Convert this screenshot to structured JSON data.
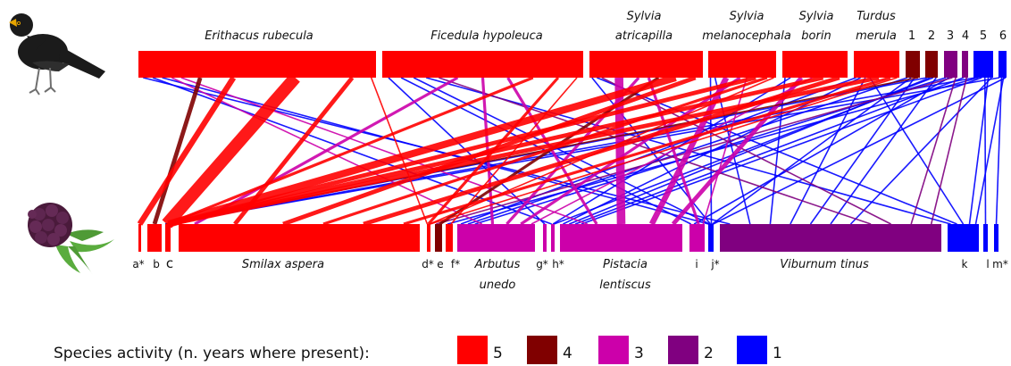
{
  "colors": {
    "5": "#ff0000",
    "4": "#800000",
    "3": "#cc00aa",
    "2": "#800080",
    "1": "#0000ff"
  },
  "birds": [
    {
      "id": "erithacus",
      "lines": [
        "Erithacus rubecula"
      ],
      "activity": 5
    },
    {
      "id": "ficedula",
      "lines": [
        "Ficedula hypoleuca"
      ],
      "activity": 5
    },
    {
      "id": "sylvia-atricapilla",
      "lines": [
        "Sylvia",
        "atricapilla"
      ],
      "activity": 5
    },
    {
      "id": "sylvia-melanocephala",
      "lines": [
        "Sylvia",
        "melanocephala"
      ],
      "activity": 5
    },
    {
      "id": "sylvia-borin",
      "lines": [
        "Sylvia",
        "borin"
      ],
      "activity": 5
    },
    {
      "id": "turdus",
      "lines": [
        "Turdus",
        "merula"
      ],
      "activity": 5
    },
    {
      "id": "1",
      "lines": [
        "1"
      ],
      "activity": 4
    },
    {
      "id": "2",
      "lines": [
        "2"
      ],
      "activity": 4
    },
    {
      "id": "3",
      "lines": [
        "3"
      ],
      "activity": 2
    },
    {
      "id": "4",
      "lines": [
        "4"
      ],
      "activity": 2
    },
    {
      "id": "5",
      "lines": [
        "5"
      ],
      "activity": 1
    },
    {
      "id": "6",
      "lines": [
        "6"
      ],
      "activity": 1
    }
  ],
  "plants": [
    {
      "id": "a",
      "code": "a*",
      "activity": 5
    },
    {
      "id": "b",
      "code": "b",
      "activity": 5
    },
    {
      "id": "c",
      "code": "c",
      "activity": 5
    },
    {
      "id": "smilax",
      "name": [
        "Smilax aspera"
      ],
      "activity": 5
    },
    {
      "id": "d",
      "code": "d*",
      "activity": 5
    },
    {
      "id": "e",
      "code": "e",
      "activity": 4
    },
    {
      "id": "f",
      "code": "f*",
      "activity": 5
    },
    {
      "id": "arbutus",
      "name": [
        "Arbutus",
        "unedo"
      ],
      "activity": 3
    },
    {
      "id": "g",
      "code": "g*",
      "activity": 3
    },
    {
      "id": "h",
      "code": "h*",
      "activity": 3
    },
    {
      "id": "pistacia",
      "name": [
        "Pistacia",
        "lentiscus"
      ],
      "activity": 3
    },
    {
      "id": "i",
      "code": "i",
      "activity": 3
    },
    {
      "id": "j",
      "code": "j*",
      "activity": 1
    },
    {
      "id": "viburnum",
      "name": [
        "Viburnum tinus"
      ],
      "activity": 2
    },
    {
      "id": "k",
      "code": "k",
      "activity": 1
    },
    {
      "id": "l",
      "code": "l",
      "activity": 1
    },
    {
      "id": "m",
      "code": "m*",
      "activity": 1
    }
  ],
  "links": [
    [
      "erithacus",
      "a",
      5,
      4
    ],
    [
      "erithacus",
      "b",
      4,
      3
    ],
    [
      "erithacus",
      "c",
      5,
      9
    ],
    [
      "erithacus",
      "smilax",
      5,
      3
    ],
    [
      "erithacus",
      "d",
      5,
      1
    ],
    [
      "erithacus",
      "arbutus",
      3,
      1
    ],
    [
      "erithacus",
      "pistacia",
      3,
      1
    ],
    [
      "erithacus",
      "viburnum",
      1,
      1
    ],
    [
      "erithacus",
      "h",
      1,
      1
    ],
    [
      "erithacus",
      "j",
      1,
      1
    ],
    [
      "ficedula",
      "c",
      5,
      2
    ],
    [
      "ficedula",
      "smilax",
      3,
      2
    ],
    [
      "ficedula",
      "d",
      5,
      2
    ],
    [
      "ficedula",
      "f",
      5,
      1
    ],
    [
      "ficedula",
      "arbutus",
      3,
      2
    ],
    [
      "ficedula",
      "pistacia",
      3,
      2
    ],
    [
      "ficedula",
      "g",
      1,
      1
    ],
    [
      "ficedula",
      "viburnum",
      2,
      1
    ],
    [
      "ficedula",
      "i",
      1,
      1
    ],
    [
      "ficedula",
      "j",
      1,
      1
    ],
    [
      "ficedula",
      "k",
      1,
      1
    ],
    [
      "sylvia-atricapilla",
      "c",
      5,
      5
    ],
    [
      "sylvia-atricapilla",
      "smilax",
      5,
      3
    ],
    [
      "sylvia-atricapilla",
      "e",
      4,
      2
    ],
    [
      "sylvia-atricapilla",
      "pistacia",
      3,
      6
    ],
    [
      "sylvia-atricapilla",
      "arbutus",
      3,
      2
    ],
    [
      "sylvia-atricapilla",
      "i",
      3,
      2
    ],
    [
      "sylvia-atricapilla",
      "viburnum",
      2,
      1
    ],
    [
      "sylvia-atricapilla",
      "j",
      1,
      1
    ],
    [
      "sylvia-atricapilla",
      "k",
      1,
      1
    ],
    [
      "sylvia-melanocephala",
      "c",
      5,
      3
    ],
    [
      "sylvia-melanocephala",
      "smilax",
      5,
      2
    ],
    [
      "sylvia-melanocephala",
      "pistacia",
      3,
      4
    ],
    [
      "sylvia-melanocephala",
      "arbutus",
      3,
      2
    ],
    [
      "sylvia-melanocephala",
      "i",
      3,
      1
    ],
    [
      "sylvia-melanocephala",
      "d",
      5,
      1
    ],
    [
      "sylvia-melanocephala",
      "j",
      1,
      1
    ],
    [
      "sylvia-melanocephala",
      "viburnum",
      1,
      1
    ],
    [
      "sylvia-borin",
      "c",
      5,
      3
    ],
    [
      "sylvia-borin",
      "smilax",
      5,
      3
    ],
    [
      "sylvia-borin",
      "pistacia",
      3,
      3
    ],
    [
      "sylvia-borin",
      "arbutus",
      3,
      1
    ],
    [
      "sylvia-borin",
      "viburnum",
      1,
      1
    ],
    [
      "sylvia-borin",
      "h",
      1,
      1
    ],
    [
      "turdus",
      "c",
      5,
      3
    ],
    [
      "turdus",
      "smilax",
      5,
      2
    ],
    [
      "turdus",
      "d",
      5,
      1
    ],
    [
      "turdus",
      "arbutus",
      1,
      1
    ],
    [
      "turdus",
      "pistacia",
      1,
      1
    ],
    [
      "turdus",
      "viburnum",
      1,
      1
    ],
    [
      "turdus",
      "k",
      1,
      1
    ],
    [
      "1",
      "c",
      4,
      1
    ],
    [
      "1",
      "arbutus",
      1,
      1
    ],
    [
      "1",
      "j",
      1,
      1
    ],
    [
      "1",
      "viburnum",
      1,
      1
    ],
    [
      "2",
      "c",
      1,
      1
    ],
    [
      "2",
      "pistacia",
      1,
      1
    ],
    [
      "2",
      "h",
      1,
      1
    ],
    [
      "2",
      "viburnum",
      1,
      1
    ],
    [
      "3",
      "arbutus",
      1,
      1
    ],
    [
      "3",
      "e",
      2,
      1
    ],
    [
      "3",
      "viburnum",
      2,
      1
    ],
    [
      "3",
      "i",
      1,
      1
    ],
    [
      "4",
      "pistacia",
      1,
      1
    ],
    [
      "4",
      "viburnum",
      2,
      1
    ],
    [
      "5",
      "c",
      1,
      1
    ],
    [
      "5",
      "f",
      1,
      1
    ],
    [
      "5",
      "pistacia",
      1,
      1
    ],
    [
      "5",
      "l",
      1,
      1
    ],
    [
      "5",
      "k",
      1,
      1
    ],
    [
      "5",
      "viburnum",
      1,
      1
    ],
    [
      "6",
      "c",
      1,
      1
    ],
    [
      "6",
      "m",
      1,
      1
    ],
    [
      "6",
      "k",
      1,
      1
    ],
    [
      "6",
      "j",
      1,
      1
    ]
  ],
  "legend": {
    "title": "Species activity (n. years where present):",
    "items": [
      {
        "value": 5,
        "label": "5"
      },
      {
        "value": 4,
        "label": "4"
      },
      {
        "value": 3,
        "label": "3"
      },
      {
        "value": 2,
        "label": "2"
      },
      {
        "value": 1,
        "label": "1"
      }
    ]
  }
}
